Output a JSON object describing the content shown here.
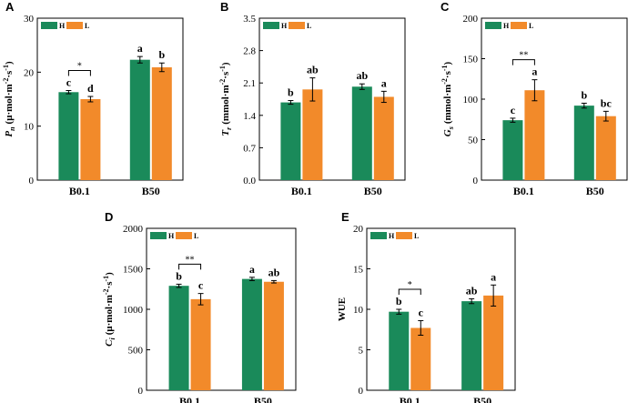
{
  "colors": {
    "H": "#1a8a5a",
    "L": "#f28a2a"
  },
  "chart_data": [
    {
      "type": "bar",
      "panel": "A",
      "ylabel": {
        "main": "P",
        "sub": "n",
        "units": "(μ·mol·m",
        "sup1": "-2",
        "mid": "·s",
        "sup2": "-1",
        "end": ")"
      },
      "ylim": [
        0,
        30
      ],
      "yticks": [
        0,
        10,
        20,
        30
      ],
      "tick_labels": [
        "0",
        "10",
        "20",
        "30"
      ],
      "categories": [
        "B0.1",
        "B50"
      ],
      "legend": [
        "H",
        "L"
      ],
      "series": [
        {
          "name": "H",
          "values": [
            16.3,
            22.3
          ],
          "errors": [
            0.3,
            0.6
          ],
          "letters": [
            "c",
            "a"
          ]
        },
        {
          "name": "L",
          "values": [
            15.0,
            20.9
          ],
          "errors": [
            0.5,
            0.8
          ],
          "letters": [
            "d",
            "b"
          ]
        }
      ],
      "bracket": {
        "category": 0,
        "label": "*"
      }
    },
    {
      "type": "bar",
      "panel": "B",
      "ylabel": {
        "main": "T",
        "sub": "r",
        "units": "(mmol·m",
        "sup1": "-2",
        "mid": "·s",
        "sup2": "-1",
        "end": ")"
      },
      "ylim": [
        0,
        3.5
      ],
      "yticks": [
        0,
        0.7,
        1.4,
        2.1,
        2.8,
        3.5
      ],
      "tick_labels": [
        "0.0",
        "0.7",
        "1.4",
        "2.1",
        "2.8",
        "3.5"
      ],
      "categories": [
        "B0.1",
        "B50"
      ],
      "legend": [
        "H",
        "L"
      ],
      "series": [
        {
          "name": "H",
          "values": [
            1.68,
            2.02
          ],
          "errors": [
            0.04,
            0.06
          ],
          "letters": [
            "b",
            "ab"
          ]
        },
        {
          "name": "L",
          "values": [
            1.96,
            1.8
          ],
          "errors": [
            0.25,
            0.12
          ],
          "letters": [
            "ab",
            "a"
          ]
        }
      ],
      "bracket": null
    },
    {
      "type": "bar",
      "panel": "C",
      "ylabel": {
        "main": "G",
        "sub": "s",
        "units": "(mmol·m",
        "sup1": "-2",
        "mid": "·s",
        "sup2": "-1",
        "end": ")"
      },
      "ylim": [
        0,
        200
      ],
      "yticks": [
        0,
        50,
        100,
        150,
        200
      ],
      "tick_labels": [
        "0",
        "50",
        "100",
        "150",
        "200"
      ],
      "categories": [
        "B0.1",
        "B50"
      ],
      "legend": [
        "H",
        "L"
      ],
      "series": [
        {
          "name": "H",
          "values": [
            74,
            92
          ],
          "errors": [
            2.5,
            3
          ],
          "letters": [
            "c",
            "b"
          ]
        },
        {
          "name": "L",
          "values": [
            111,
            79
          ],
          "errors": [
            13,
            6
          ],
          "letters": [
            "a",
            "bc"
          ]
        }
      ],
      "bracket": {
        "category": 0,
        "label": "**"
      }
    },
    {
      "type": "bar",
      "panel": "D",
      "ylabel": {
        "main": "C",
        "sub": "i",
        "units": "(μ·mol·m",
        "sup1": "-2",
        "mid": "·s",
        "sup2": "-1",
        "end": ")"
      },
      "ylim": [
        0,
        2000
      ],
      "yticks": [
        0,
        500,
        1000,
        1500,
        2000
      ],
      "tick_labels": [
        "0",
        "500",
        "1000",
        "1500",
        "2000"
      ],
      "categories": [
        "B0.1",
        "B50"
      ],
      "legend": [
        "H",
        "L"
      ],
      "series": [
        {
          "name": "H",
          "values": [
            1290,
            1375
          ],
          "errors": [
            20,
            20
          ],
          "letters": [
            "b",
            "a"
          ]
        },
        {
          "name": "L",
          "values": [
            1125,
            1340
          ],
          "errors": [
            70,
            15
          ],
          "letters": [
            "c",
            "ab"
          ]
        }
      ],
      "bracket": {
        "category": 0,
        "label": "**"
      }
    },
    {
      "type": "bar",
      "panel": "E",
      "ylabel": {
        "main": "WUE",
        "sub": "",
        "units": "",
        "sup1": "",
        "mid": "",
        "sup2": "",
        "end": ""
      },
      "ylim": [
        0,
        20
      ],
      "yticks": [
        0,
        5,
        10,
        15,
        20
      ],
      "tick_labels": [
        "0",
        "5",
        "10",
        "15",
        "20"
      ],
      "categories": [
        "B0.1",
        "B50"
      ],
      "legend": [
        "H",
        "L"
      ],
      "series": [
        {
          "name": "H",
          "values": [
            9.7,
            11.0
          ],
          "errors": [
            0.3,
            0.3
          ],
          "letters": [
            "b",
            "ab"
          ]
        },
        {
          "name": "L",
          "values": [
            7.7,
            11.7
          ],
          "errors": [
            0.9,
            1.3
          ],
          "letters": [
            "c",
            "a"
          ]
        }
      ],
      "bracket": {
        "category": 0,
        "label": "*"
      }
    }
  ]
}
